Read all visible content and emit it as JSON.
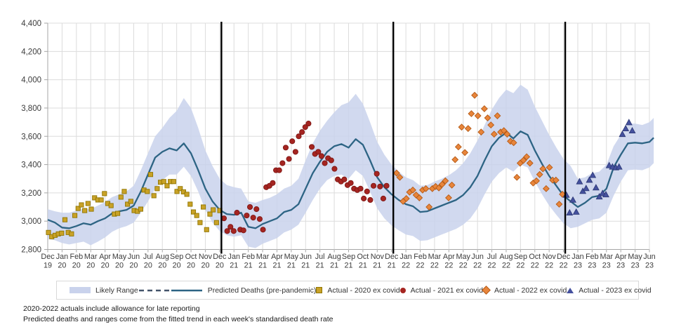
{
  "colors": {
    "grid": "#DCDCDC",
    "axis": "#A6A6A6",
    "text": "#3B3B3B",
    "year_break": "#000000",
    "legend_dash": "#44546A"
  },
  "footnotes": [
    "2020-2022  actuals include allowance for late reporting",
    "Predicted deaths and ranges come from the fitted trend in each week's standardised death rate"
  ],
  "legend": {
    "items": [
      {
        "marker": "band",
        "label": "Likely Range",
        "color": "#C9D2EC",
        "edge": "#C9D2EC"
      },
      {
        "marker": "dashed-line",
        "label": "",
        "color": "#44546A",
        "edge": "#44546A"
      },
      {
        "marker": "solid-line",
        "label": "Predicted Deaths (pre-pandemic)",
        "color": "#2D6484",
        "edge": "#2D6484"
      },
      {
        "marker": "square",
        "label": "Actual - 2020 ex covid",
        "color": "#C9A227",
        "edge": "#8F7500"
      },
      {
        "marker": "circle",
        "label": "Actual - 2021 ex covid",
        "color": "#A52521",
        "edge": "#7E1613"
      },
      {
        "marker": "diamond",
        "label": "Actual - 2022 ex covid",
        "color": "#E8853B",
        "edge": "#B45A17"
      },
      {
        "marker": "triangle",
        "label": "Actual - 2023 ex covid",
        "color": "#45519E",
        "edge": "#2E3A78"
      }
    ]
  },
  "chart_data": {
    "type": "line",
    "title": "",
    "xlabel": "",
    "ylabel": "",
    "ylim": [
      2800,
      4400
    ],
    "grid": true,
    "legend_position": "bottom",
    "yticks": [
      2800,
      3000,
      3200,
      3400,
      3600,
      3800,
      4000,
      4200,
      4400
    ],
    "ytick_labels": [
      "2,800",
      "3,000",
      "3,200",
      "3,400",
      "3,600",
      "3,800",
      "4,000",
      "4,200",
      "4,400"
    ],
    "x_months": [
      "Dec 19",
      "Jan 20",
      "Feb 20",
      "Mar 20",
      "Apr 20",
      "May 20",
      "Jun 20",
      "Jul 20",
      "Aug 20",
      "Sep 20",
      "Oct 20",
      "Nov 20",
      "Dec 20",
      "Jan 21",
      "Feb 21",
      "Mar 21",
      "Apr 21",
      "May 21",
      "Jun 21",
      "Jul 21",
      "Aug 21",
      "Sep 21",
      "Oct 21",
      "Nov 21",
      "Dec 21",
      "Jan 22",
      "Feb 22",
      "Mar 22",
      "Apr 22",
      "May 22",
      "Jun 22",
      "Jul 22",
      "Aug 22",
      "Sep 22",
      "Oct 22",
      "Nov 22",
      "Dec 22",
      "Jan 23",
      "Feb 23",
      "Mar 23",
      "Apr 23",
      "May 23",
      "Jun 23"
    ],
    "year_breaks": [
      12,
      24,
      36
    ],
    "grid_x_start": 0,
    "grid_x_step": 0.5,
    "grid_x_last": 42.3,
    "band": {
      "name": "Likely Range",
      "color": "#C9D2EC",
      "high": [
        3085,
        3070,
        3060,
        3060,
        3075,
        3090,
        3085,
        3110,
        3135,
        3170,
        3190,
        3210,
        3250,
        3360,
        3480,
        3600,
        3660,
        3730,
        3780,
        3870,
        3800,
        3660,
        3500,
        3390,
        3300,
        3255,
        3240,
        3230,
        3140,
        3130,
        3150,
        3165,
        3190,
        3230,
        3250,
        3300,
        3430,
        3550,
        3640,
        3710,
        3770,
        3820,
        3840,
        3900,
        3830,
        3700,
        3560,
        3470,
        3400,
        3350,
        3310,
        3290,
        3250,
        3255,
        3280,
        3300,
        3325,
        3360,
        3410,
        3480,
        3570,
        3680,
        3790,
        3870,
        3930,
        3905,
        3965,
        3930,
        3810,
        3710,
        3610,
        3520,
        3440,
        3390,
        3300,
        3310,
        3340,
        3350,
        3400,
        3530,
        3610,
        3690,
        3690,
        3680,
        3700,
        3730
      ],
      "low": [
        2875,
        2865,
        2845,
        2835,
        2845,
        2855,
        2830,
        2855,
        2885,
        2925,
        2950,
        2965,
        2990,
        3060,
        3140,
        3230,
        3290,
        3330,
        3330,
        3385,
        3320,
        3210,
        3080,
        2990,
        2930,
        2900,
        2890,
        2900,
        2820,
        2810,
        2840,
        2860,
        2880,
        2920,
        2940,
        2975,
        3060,
        3150,
        3230,
        3290,
        3320,
        3330,
        3300,
        3360,
        3320,
        3210,
        3090,
        3020,
        2970,
        2935,
        2905,
        2895,
        2860,
        2865,
        2885,
        2905,
        2925,
        2945,
        2975,
        3020,
        3090,
        3190,
        3280,
        3340,
        3380,
        3350,
        3400,
        3380,
        3280,
        3190,
        3110,
        3045,
        2985,
        2950,
        2960,
        2985,
        3010,
        3020,
        3060,
        3180,
        3280,
        3360,
        3365,
        3360,
        3380,
        3410
      ]
    },
    "line": {
      "name": "Predicted Deaths (pre-pandemic)",
      "color": "#2D6484",
      "y": [
        3010,
        2990,
        2955,
        2950,
        2965,
        2985,
        2975,
        3000,
        3020,
        3055,
        3070,
        3080,
        3110,
        3210,
        3330,
        3450,
        3490,
        3515,
        3500,
        3550,
        3480,
        3360,
        3230,
        3140,
        3080,
        3050,
        3045,
        3060,
        2960,
        2950,
        2980,
        3000,
        3020,
        3065,
        3080,
        3120,
        3230,
        3340,
        3420,
        3490,
        3530,
        3545,
        3520,
        3580,
        3540,
        3430,
        3310,
        3240,
        3190,
        3150,
        3120,
        3105,
        3065,
        3070,
        3090,
        3110,
        3130,
        3150,
        3185,
        3240,
        3320,
        3430,
        3530,
        3590,
        3625,
        3585,
        3635,
        3610,
        3500,
        3405,
        3320,
        3250,
        3180,
        3140,
        3100,
        3130,
        3170,
        3180,
        3230,
        3380,
        3470,
        3550,
        3555,
        3550,
        3560,
        3590
      ]
    },
    "scatter": [
      {
        "name": "Actual - 2020 ex covid",
        "marker": "square",
        "color": "#C9A227",
        "edge": "#8F7500",
        "start": 0.05,
        "step": 0.23,
        "values": [
          2920,
          2890,
          2900,
          2910,
          2915,
          3010,
          2920,
          2910,
          3040,
          3090,
          3115,
          3075,
          3125,
          3085,
          3165,
          3150,
          3150,
          3195,
          3125,
          3110,
          3050,
          3055,
          3170,
          3210,
          3120,
          3140,
          3075,
          3070,
          3085,
          3220,
          3210,
          3330,
          3180,
          3230,
          3275,
          3280,
          3250,
          3280,
          3280,
          3210,
          3230,
          3207,
          3190,
          3120,
          3065,
          3040,
          2990,
          3100,
          2940,
          3050,
          3080,
          2990,
          3075
        ]
      },
      {
        "name": "Actual - 2021 ex covid",
        "marker": "circle",
        "color": "#A52521",
        "edge": "#7E1613",
        "start": 12.3,
        "step": 0.227,
        "values": [
          3020,
          2930,
          2960,
          2930,
          3060,
          2940,
          2935,
          3040,
          3100,
          3025,
          3085,
          3015,
          2940,
          3240,
          3250,
          3270,
          3360,
          3360,
          3410,
          3520,
          3440,
          3565,
          3490,
          3600,
          3630,
          3665,
          3690,
          3525,
          3475,
          3490,
          3460,
          3410,
          3445,
          3430,
          3370,
          3295,
          3280,
          3295,
          3255,
          3270,
          3230,
          3220,
          3230,
          3160,
          3210,
          3150,
          3250,
          3335,
          3245,
          3160,
          3250
        ]
      },
      {
        "name": "Actual - 2022 ex covid",
        "marker": "diamond",
        "color": "#E8853B",
        "edge": "#B45A17",
        "start": 24.35,
        "step": 0.227,
        "values": [
          3340,
          3310,
          3140,
          3160,
          3205,
          3220,
          3185,
          3165,
          3220,
          3230,
          3100,
          3230,
          3245,
          3235,
          3260,
          3285,
          3165,
          3255,
          3435,
          3525,
          3665,
          3485,
          3655,
          3760,
          3890,
          3745,
          3630,
          3795,
          3730,
          3680,
          3615,
          3745,
          3630,
          3640,
          3615,
          3565,
          3555,
          3310,
          3410,
          3430,
          3455,
          3410,
          3270,
          3285,
          3330,
          3370,
          3230,
          3380,
          3290,
          3290,
          3120,
          3190
        ]
      },
      {
        "name": "Actual - 2023 ex covid",
        "marker": "triangle",
        "color": "#45519E",
        "edge": "#2E3A78",
        "start": 36.2,
        "step": 0.23,
        "values": [
          3185,
          3060,
          3150,
          3065,
          3280,
          3212,
          3232,
          3291,
          3325,
          3237,
          3173,
          3197,
          3188,
          3394,
          3384,
          3379,
          3384,
          3615,
          3655,
          3698,
          3640
        ]
      }
    ]
  }
}
